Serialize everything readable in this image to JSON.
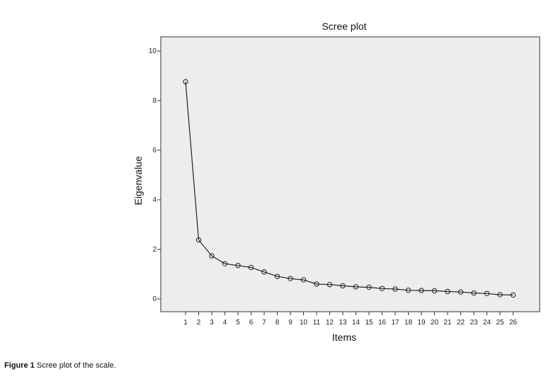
{
  "chart_data": {
    "type": "line",
    "title": "Scree plot",
    "xlabel": "Items",
    "ylabel": "Eigenvalue",
    "ylim": [
      0,
      10
    ],
    "yticks": [
      0,
      2,
      4,
      6,
      8,
      10
    ],
    "x": [
      1,
      2,
      3,
      4,
      5,
      6,
      7,
      8,
      9,
      10,
      11,
      12,
      13,
      14,
      15,
      16,
      17,
      18,
      19,
      20,
      21,
      22,
      23,
      24,
      25,
      26
    ],
    "values": [
      8.76,
      2.38,
      1.74,
      1.42,
      1.35,
      1.27,
      1.09,
      0.91,
      0.82,
      0.77,
      0.6,
      0.58,
      0.53,
      0.49,
      0.47,
      0.42,
      0.4,
      0.35,
      0.34,
      0.33,
      0.3,
      0.28,
      0.24,
      0.22,
      0.17,
      0.16
    ],
    "marker": "open-circle",
    "grid": false,
    "legend": "none",
    "colors": {
      "plot_background": "#ededed",
      "line": "#222222",
      "frame": "#333333"
    }
  },
  "caption": {
    "label": "Figure 1",
    "text": "Scree plot of the scale."
  }
}
